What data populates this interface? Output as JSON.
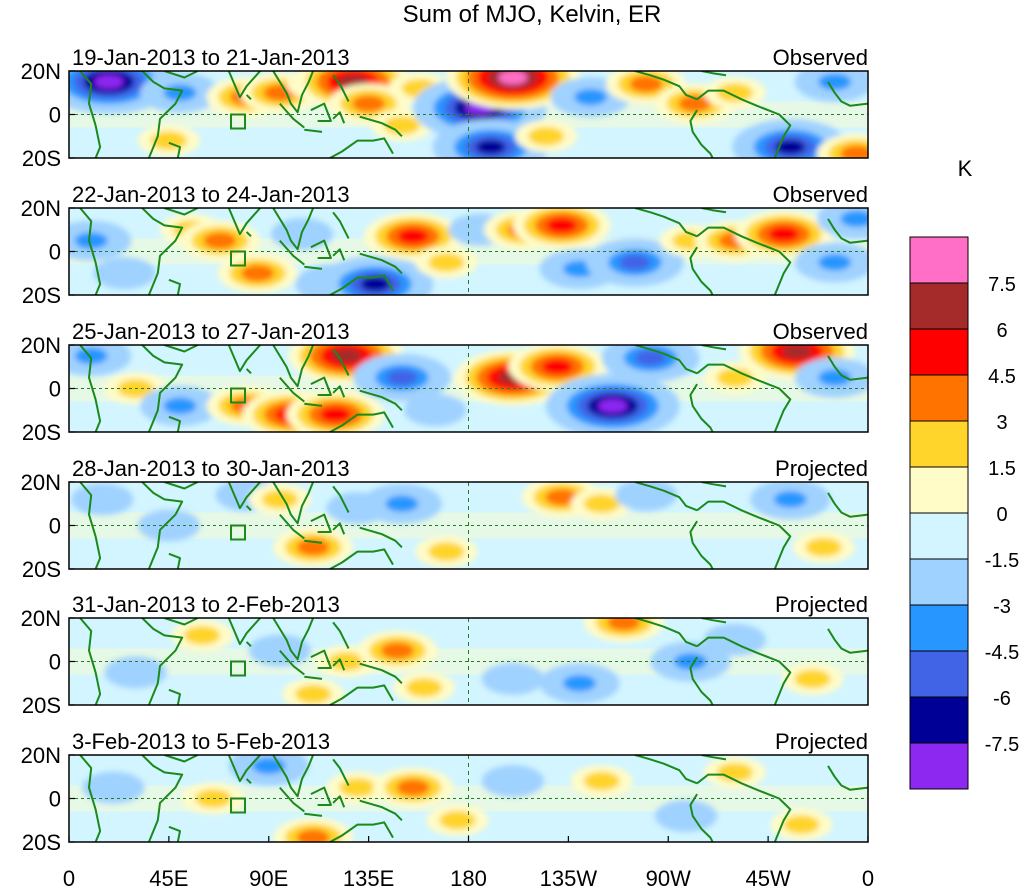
{
  "chart_data": {
    "type": "heatmap",
    "title": "Sum of MJO, Kelvin, ER",
    "colorbar": {
      "unit_label": "K",
      "tick_labels": [
        "7.5",
        "6",
        "4.5",
        "3",
        "1.5",
        "0",
        "-1.5",
        "-3",
        "-4.5",
        "-6",
        "-7.5"
      ],
      "colors": [
        "#ff6ec7",
        "#a52a2a",
        "#ff0000",
        "#ff7300",
        "#ffd42b",
        "#fffcc8",
        "#d2f5ff",
        "#a0d2ff",
        "#2896ff",
        "#4164e6",
        "#000096",
        "#8c28f0"
      ],
      "interval_upper_bounds": [
        null,
        7.5,
        6,
        4.5,
        3,
        1.5,
        0,
        -1.5,
        -3,
        -4.5,
        -6,
        -7.5
      ]
    },
    "x_tick_labels": [
      "0",
      "45E",
      "90E",
      "135E",
      "180",
      "135W",
      "90W",
      "45W",
      "0"
    ],
    "x_tick_lon": [
      0,
      45,
      90,
      135,
      180,
      225,
      270,
      315,
      360
    ],
    "y_tick_labels": [
      "20N",
      "0",
      "20S"
    ],
    "y_tick_lat": [
      20,
      0,
      -20
    ],
    "xlim_lon": [
      0,
      360
    ],
    "ylim_lat": [
      -20,
      20
    ],
    "panels": [
      {
        "period": "19-Jan-2013 to 21-Jan-2013",
        "status": "Observed",
        "features": [
          {
            "lon": 18,
            "lat": 15,
            "value": -7.5
          },
          {
            "lon": 50,
            "lat": 10,
            "value": -3
          },
          {
            "lon": 45,
            "lat": -12,
            "value": 1.5
          },
          {
            "lon": 80,
            "lat": 8,
            "value": 3
          },
          {
            "lon": 95,
            "lat": 10,
            "value": 3
          },
          {
            "lon": 112,
            "lat": 14,
            "value": 1.5
          },
          {
            "lon": 128,
            "lat": 15,
            "value": 6
          },
          {
            "lon": 135,
            "lat": 5,
            "value": 3
          },
          {
            "lon": 150,
            "lat": -5,
            "value": 1.5
          },
          {
            "lon": 158,
            "lat": 12,
            "value": 1.5
          },
          {
            "lon": 185,
            "lat": 3,
            "value": -7.5
          },
          {
            "lon": 190,
            "lat": -15,
            "value": -6
          },
          {
            "lon": 200,
            "lat": 17,
            "value": 7.5
          },
          {
            "lon": 215,
            "lat": -10,
            "value": 1.5
          },
          {
            "lon": 235,
            "lat": 8,
            "value": -3
          },
          {
            "lon": 260,
            "lat": 14,
            "value": 3
          },
          {
            "lon": 282,
            "lat": 5,
            "value": 3
          },
          {
            "lon": 300,
            "lat": 10,
            "value": 1.5
          },
          {
            "lon": 325,
            "lat": -15,
            "value": -6
          },
          {
            "lon": 345,
            "lat": 15,
            "value": -3
          },
          {
            "lon": 355,
            "lat": -18,
            "value": 3
          }
        ]
      },
      {
        "period": "22-Jan-2013 to 24-Jan-2013",
        "status": "Observed",
        "features": [
          {
            "lon": 10,
            "lat": 5,
            "value": -3
          },
          {
            "lon": 25,
            "lat": -10,
            "value": -1.5
          },
          {
            "lon": 55,
            "lat": 10,
            "value": 1.5
          },
          {
            "lon": 68,
            "lat": 5,
            "value": 3
          },
          {
            "lon": 85,
            "lat": -10,
            "value": 3
          },
          {
            "lon": 105,
            "lat": 8,
            "value": -1.5
          },
          {
            "lon": 120,
            "lat": -15,
            "value": -3
          },
          {
            "lon": 138,
            "lat": -15,
            "value": -6
          },
          {
            "lon": 155,
            "lat": 7,
            "value": 4.5
          },
          {
            "lon": 170,
            "lat": -5,
            "value": 1.5
          },
          {
            "lon": 185,
            "lat": 10,
            "value": -1.5
          },
          {
            "lon": 205,
            "lat": 10,
            "value": 3
          },
          {
            "lon": 222,
            "lat": 12,
            "value": 4.5
          },
          {
            "lon": 230,
            "lat": -8,
            "value": -3
          },
          {
            "lon": 255,
            "lat": -5,
            "value": -4.5
          },
          {
            "lon": 280,
            "lat": 5,
            "value": 1.5
          },
          {
            "lon": 300,
            "lat": 5,
            "value": 3
          },
          {
            "lon": 322,
            "lat": 8,
            "value": 4.5
          },
          {
            "lon": 345,
            "lat": -5,
            "value": -3
          },
          {
            "lon": 355,
            "lat": 15,
            "value": -3
          }
        ]
      },
      {
        "period": "25-Jan-2013 to 27-Jan-2013",
        "status": "Observed",
        "features": [
          {
            "lon": 10,
            "lat": 15,
            "value": -3
          },
          {
            "lon": 30,
            "lat": 0,
            "value": 1.5
          },
          {
            "lon": 50,
            "lat": -8,
            "value": -3
          },
          {
            "lon": 80,
            "lat": -8,
            "value": 3
          },
          {
            "lon": 100,
            "lat": -12,
            "value": 4.5
          },
          {
            "lon": 120,
            "lat": -12,
            "value": 4.5
          },
          {
            "lon": 125,
            "lat": 15,
            "value": 6
          },
          {
            "lon": 150,
            "lat": 5,
            "value": -4.5
          },
          {
            "lon": 165,
            "lat": -10,
            "value": -1.5
          },
          {
            "lon": 200,
            "lat": 5,
            "value": 6
          },
          {
            "lon": 220,
            "lat": 10,
            "value": 4.5
          },
          {
            "lon": 245,
            "lat": -8,
            "value": -7.5
          },
          {
            "lon": 262,
            "lat": 14,
            "value": -4.5
          },
          {
            "lon": 300,
            "lat": 5,
            "value": 1.5
          },
          {
            "lon": 328,
            "lat": 17,
            "value": 6
          },
          {
            "lon": 345,
            "lat": 5,
            "value": -3
          }
        ]
      },
      {
        "period": "28-Jan-2013 to 30-Jan-2013",
        "status": "Projected",
        "features": [
          {
            "lon": 15,
            "lat": 12,
            "value": -1.5
          },
          {
            "lon": 45,
            "lat": 0,
            "value": -1.5
          },
          {
            "lon": 80,
            "lat": 14,
            "value": -1.5
          },
          {
            "lon": 95,
            "lat": 12,
            "value": 1.5
          },
          {
            "lon": 110,
            "lat": -10,
            "value": 3
          },
          {
            "lon": 130,
            "lat": 8,
            "value": -1.5
          },
          {
            "lon": 150,
            "lat": 10,
            "value": -3
          },
          {
            "lon": 170,
            "lat": -12,
            "value": 1.5
          },
          {
            "lon": 222,
            "lat": 13,
            "value": 3
          },
          {
            "lon": 240,
            "lat": 10,
            "value": 1.5
          },
          {
            "lon": 260,
            "lat": 14,
            "value": -1.5
          },
          {
            "lon": 325,
            "lat": 12,
            "value": -3
          },
          {
            "lon": 340,
            "lat": -10,
            "value": 1.5
          }
        ]
      },
      {
        "period": "31-Jan-2013 to 2-Feb-2013",
        "status": "Projected",
        "features": [
          {
            "lon": 30,
            "lat": -5,
            "value": -1.5
          },
          {
            "lon": 60,
            "lat": 12,
            "value": 1.5
          },
          {
            "lon": 95,
            "lat": 5,
            "value": -1.5
          },
          {
            "lon": 110,
            "lat": -15,
            "value": 1.5
          },
          {
            "lon": 125,
            "lat": 0,
            "value": 1.5
          },
          {
            "lon": 148,
            "lat": 5,
            "value": 3
          },
          {
            "lon": 160,
            "lat": -12,
            "value": 1.5
          },
          {
            "lon": 200,
            "lat": -8,
            "value": -1.5
          },
          {
            "lon": 230,
            "lat": -10,
            "value": -3
          },
          {
            "lon": 250,
            "lat": 18,
            "value": 3
          },
          {
            "lon": 280,
            "lat": 0,
            "value": -3
          },
          {
            "lon": 300,
            "lat": 10,
            "value": -1.5
          },
          {
            "lon": 335,
            "lat": -8,
            "value": 1.5
          }
        ]
      },
      {
        "period": "3-Feb-2013 to 5-Feb-2013",
        "status": "Projected",
        "features": [
          {
            "lon": 20,
            "lat": 5,
            "value": -1.5
          },
          {
            "lon": 65,
            "lat": 0,
            "value": 1.5
          },
          {
            "lon": 90,
            "lat": 15,
            "value": -3
          },
          {
            "lon": 110,
            "lat": -18,
            "value": 3
          },
          {
            "lon": 130,
            "lat": 5,
            "value": 1.5
          },
          {
            "lon": 155,
            "lat": 5,
            "value": 3
          },
          {
            "lon": 175,
            "lat": -10,
            "value": 1.5
          },
          {
            "lon": 200,
            "lat": 8,
            "value": -1.5
          },
          {
            "lon": 240,
            "lat": 8,
            "value": 1.5
          },
          {
            "lon": 278,
            "lat": -8,
            "value": -1.5
          },
          {
            "lon": 300,
            "lat": 12,
            "value": 1.5
          },
          {
            "lon": 330,
            "lat": -12,
            "value": 1.5
          }
        ]
      }
    ]
  }
}
